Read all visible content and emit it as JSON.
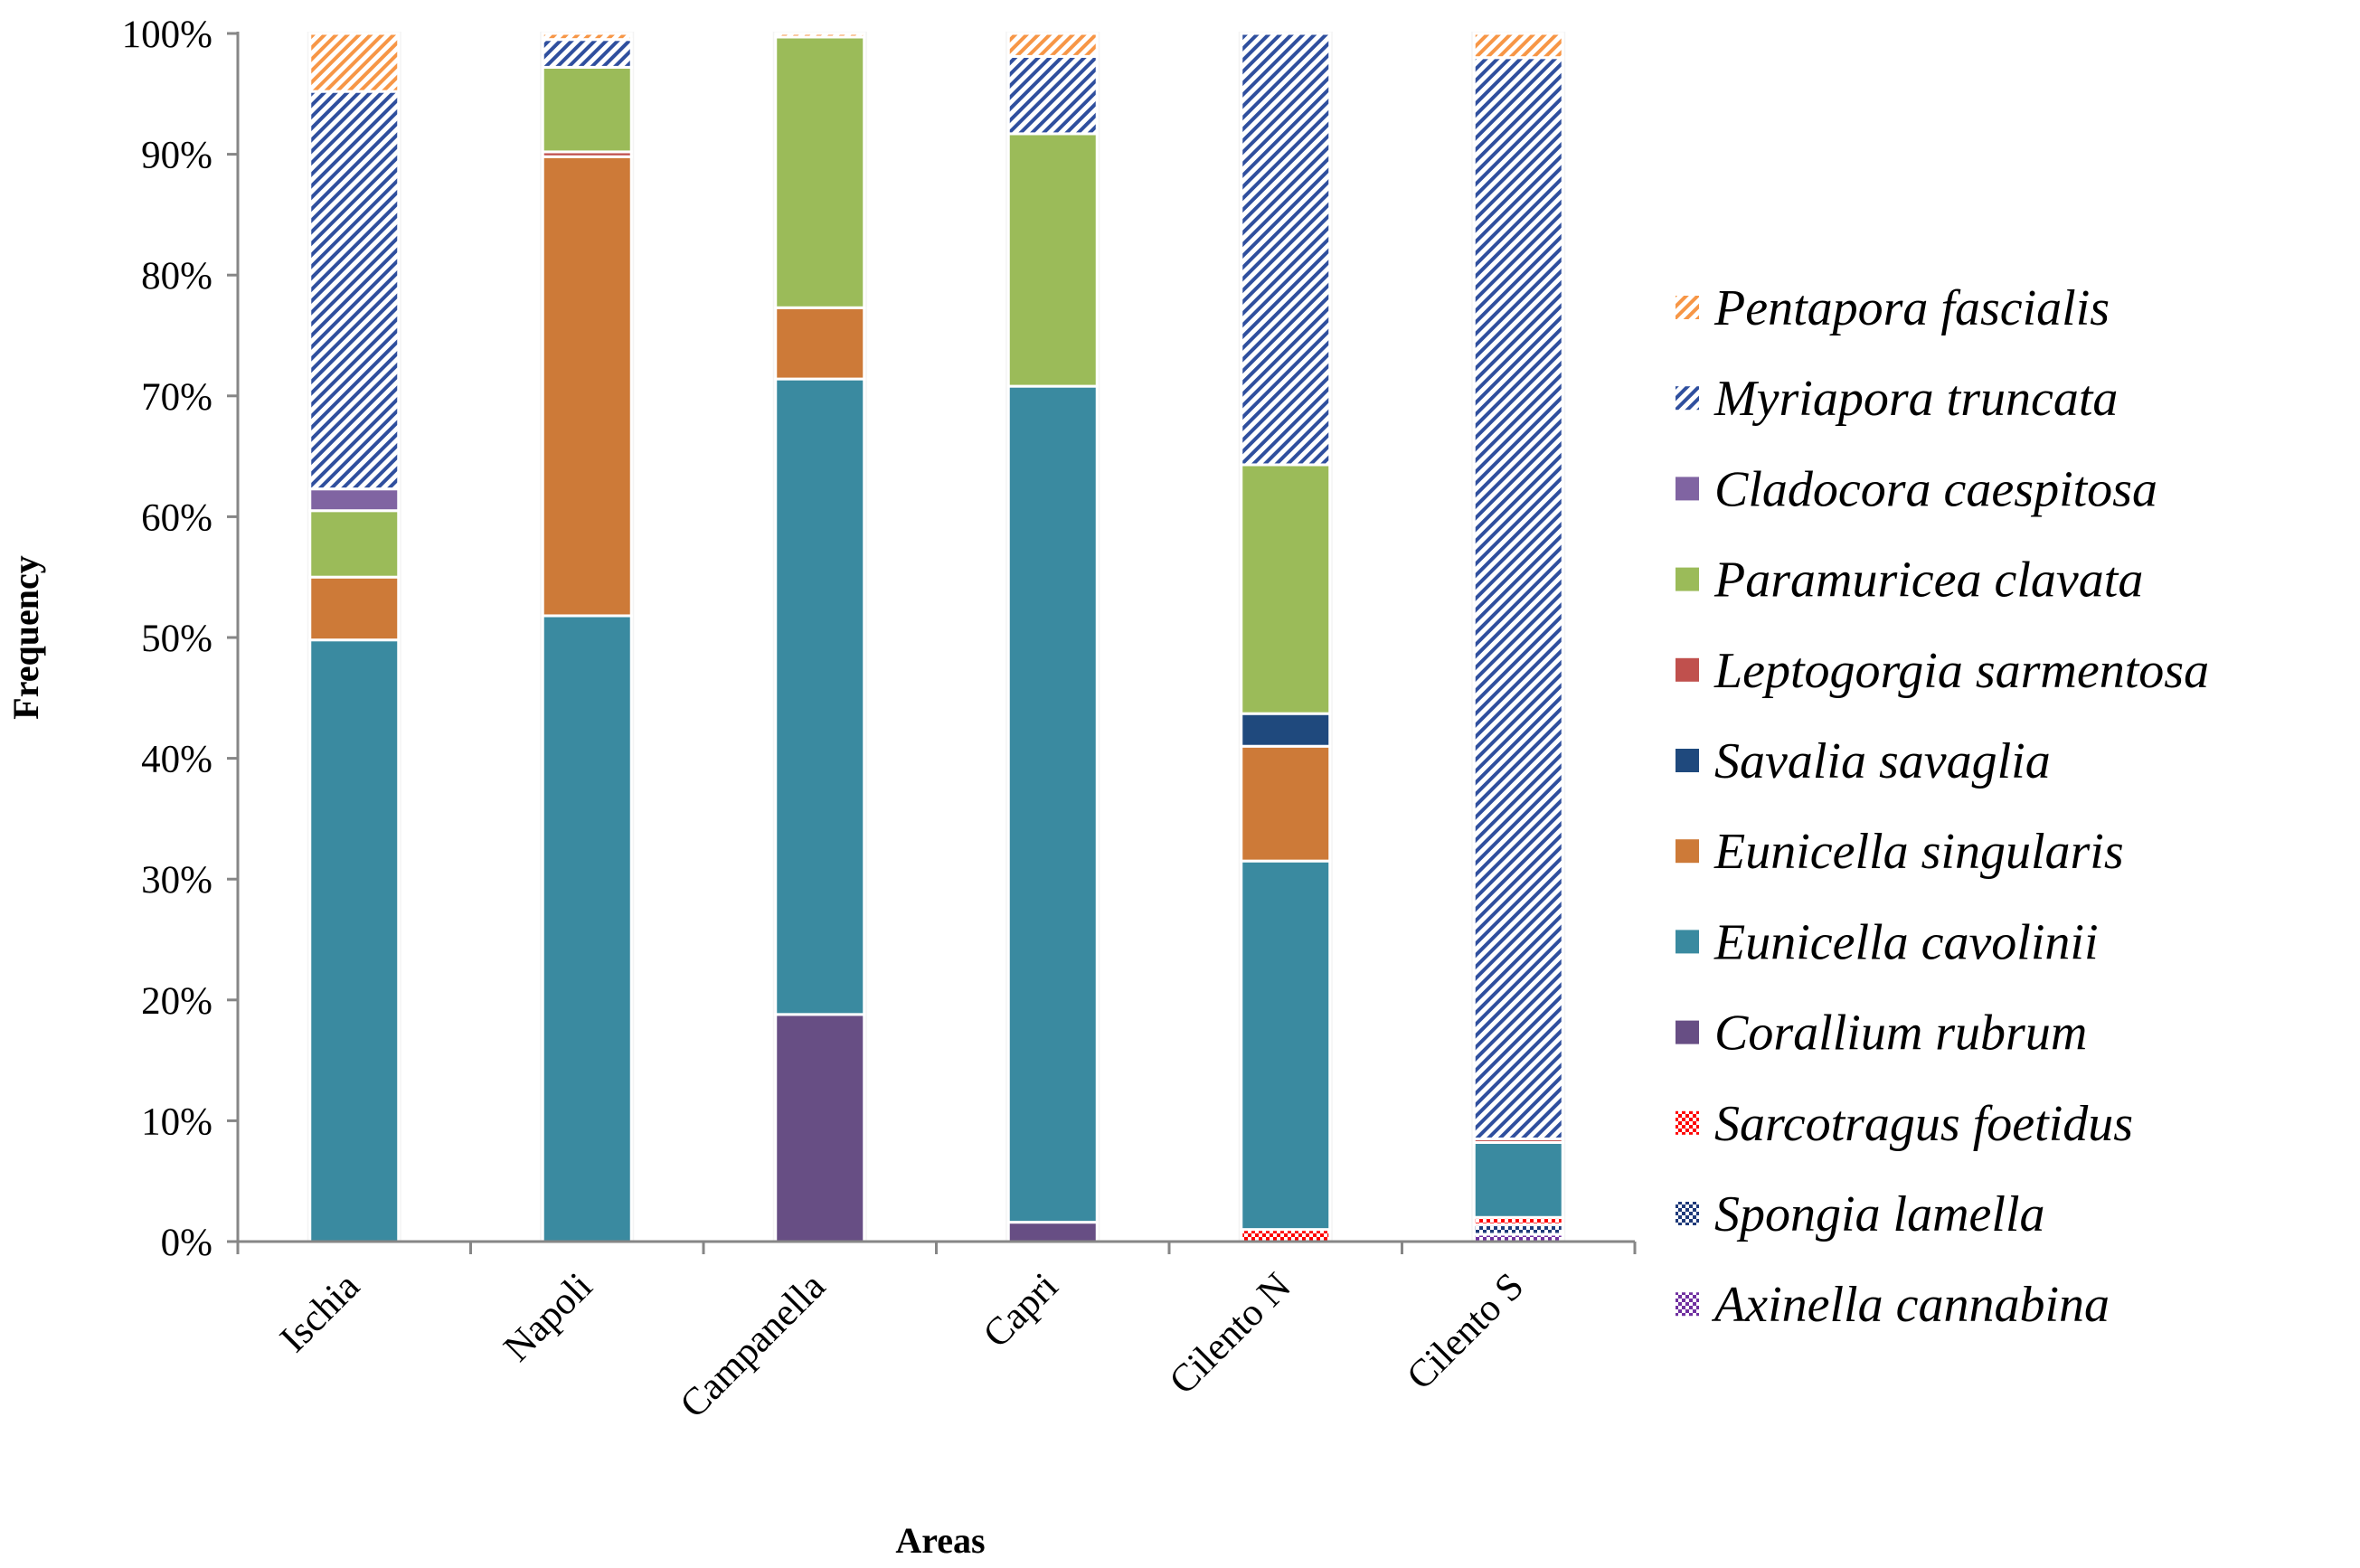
{
  "chart_data": {
    "type": "bar",
    "stacked": true,
    "percent": true,
    "title": "",
    "xlabel": "Areas",
    "ylabel": "Frequency",
    "ylim": [
      0,
      100
    ],
    "y_ticks": [
      "0%",
      "10%",
      "20%",
      "30%",
      "40%",
      "50%",
      "60%",
      "70%",
      "80%",
      "90%",
      "100%"
    ],
    "categories": [
      "Ischia",
      "Napoli",
      "Campanella",
      "Capri",
      "Cilento N",
      "Cilento S"
    ],
    "series": [
      {
        "name": "Axinella cannabina",
        "color": "#7030A0",
        "pattern": "checker",
        "values": [
          0,
          0,
          0,
          0,
          0,
          0.6
        ]
      },
      {
        "name": "Spongia lamella",
        "color": "#1F3A7A",
        "pattern": "checker",
        "values": [
          0,
          0,
          0,
          0,
          0,
          0.8
        ]
      },
      {
        "name": "Sarcotragus foetidus",
        "color": "#FF0000",
        "pattern": "checker",
        "values": [
          0,
          0,
          0,
          0,
          1.0,
          0.6
        ]
      },
      {
        "name": "Corallium rubrum",
        "color": "#674E84",
        "pattern": "solid",
        "values": [
          0,
          0,
          18.8,
          1.6,
          0,
          0
        ]
      },
      {
        "name": "Eunicella cavolinii",
        "color": "#3A8AA0",
        "pattern": "solid",
        "values": [
          49.8,
          51.8,
          52.6,
          69.2,
          30.5,
          6.2
        ]
      },
      {
        "name": "Eunicella singularis",
        "color": "#CD7A38",
        "pattern": "solid",
        "values": [
          5.2,
          38.0,
          5.9,
          0,
          9.5,
          0
        ]
      },
      {
        "name": "Savalia savaglia",
        "color": "#1F497D",
        "pattern": "solid",
        "values": [
          0,
          0,
          0,
          0,
          2.7,
          0
        ]
      },
      {
        "name": "Leptogorgia sarmentosa",
        "color": "#C0504D",
        "pattern": "solid",
        "values": [
          0,
          0.4,
          0,
          0,
          0,
          0.3
        ]
      },
      {
        "name": "Paramuricea clavata",
        "color": "#9BBB59",
        "pattern": "solid",
        "values": [
          5.5,
          7.0,
          22.4,
          20.9,
          20.6,
          0
        ]
      },
      {
        "name": "Cladocora caespitosa",
        "color": "#8064A2",
        "pattern": "solid",
        "values": [
          1.8,
          0,
          0,
          0,
          0,
          0
        ]
      },
      {
        "name": "Myriapora truncata",
        "color": "#2F4F9E",
        "pattern": "diagonal",
        "values": [
          32.9,
          2.3,
          0,
          6.4,
          35.7,
          89.5
        ]
      },
      {
        "name": "Pentapora fascialis",
        "color": "#F79646",
        "pattern": "diagonal",
        "values": [
          4.8,
          0.5,
          0.3,
          1.9,
          0,
          2.0
        ]
      }
    ],
    "legend": {
      "placement": "right",
      "order": [
        "Pentapora fascialis",
        "Myriapora truncata",
        "Cladocora caespitosa",
        "Paramuricea clavata",
        "Leptogorgia sarmentosa",
        "Savalia savaglia",
        "Eunicella singularis",
        "Eunicella cavolinii",
        "Corallium rubrum",
        "Sarcotragus foetidus",
        "Spongia lamella",
        "Axinella cannabina"
      ]
    },
    "grid": false
  }
}
